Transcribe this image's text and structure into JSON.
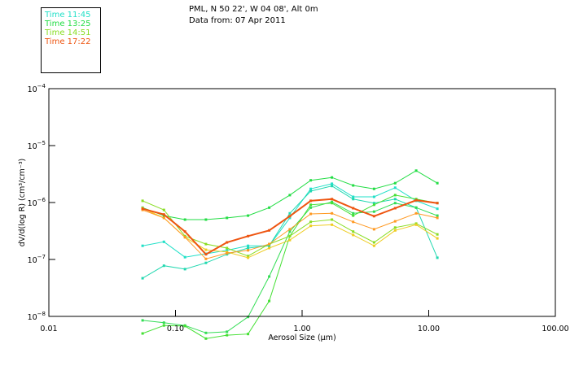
{
  "header": {
    "location": "PML, N 50 22', W 04 08', Alt 0m",
    "date": "Data from: 07 Apr 2011"
  },
  "legend": [
    {
      "label": "Time 11:45",
      "color": "#22e0c8"
    },
    {
      "label": "Time 13:25",
      "color": "#22dd44"
    },
    {
      "label": "Time 14:51",
      "color": "#88dd22"
    },
    {
      "label": "Time 17:22",
      "color": "#ee5511"
    }
  ],
  "chart_data": {
    "type": "line",
    "title": "",
    "xlabel": "Aerosol Size (μm)",
    "ylabel": "dV/d(log R) (cm³/cm⁻³)",
    "xscale": "log",
    "yscale": "log",
    "xlim": [
      0.01,
      100.0
    ],
    "ylim": [
      1e-08,
      0.0001
    ],
    "x_ticks": [
      {
        "value": 0.01,
        "label": "0.01"
      },
      {
        "value": 0.1,
        "label": "0.10"
      },
      {
        "value": 1.0,
        "label": "1.00"
      },
      {
        "value": 10.0,
        "label": "10.00"
      },
      {
        "value": 100.0,
        "label": "100.00"
      }
    ],
    "y_ticks": [
      {
        "exp": -4,
        "base": "10",
        "sup": "−4"
      },
      {
        "exp": -5,
        "base": "10",
        "sup": "−5"
      },
      {
        "exp": -6,
        "base": "10",
        "sup": "−6"
      },
      {
        "exp": -7,
        "base": "10",
        "sup": "−7"
      },
      {
        "exp": -8,
        "base": "10",
        "sup": "−8"
      }
    ],
    "x": [
      0.055,
      0.081,
      0.119,
      0.174,
      0.255,
      0.374,
      0.55,
      0.8,
      1.17,
      1.72,
      2.53,
      3.7,
      5.43,
      7.96,
      11.7
    ],
    "series": [
      {
        "name": "Time 11:45",
        "color": "#22e0c8",
        "log10_values": [
          -6.76,
          -6.69,
          -6.96,
          -6.9,
          -6.84,
          -6.76,
          -6.76,
          -6.27,
          -5.76,
          -5.67,
          -5.9,
          -5.9,
          -5.74,
          -5.97,
          -6.11
        ]
      },
      {
        "name": "",
        "color": "#22d8b0",
        "log10_values": [
          -7.33,
          -7.11,
          -7.17,
          -7.06,
          -6.91,
          -6.8,
          -6.76,
          -6.19,
          -5.8,
          -5.71,
          -5.94,
          -6.01,
          -5.94,
          -6.09,
          -6.97
        ]
      },
      {
        "name": "Time 13:25",
        "color": "#22dd44",
        "log10_values": [
          -6.09,
          -6.23,
          -6.3,
          -6.3,
          -6.27,
          -6.23,
          -6.09,
          -5.87,
          -5.61,
          -5.56,
          -5.7,
          -5.76,
          -5.66,
          -5.44,
          -5.66
        ]
      },
      {
        "name": "",
        "color": "#33dd55",
        "log10_values": [
          -8.07,
          -8.11,
          -8.16,
          -8.29,
          -8.27,
          -8.01,
          -7.3,
          -6.51,
          -6.09,
          -5.99,
          -6.19,
          -6.16,
          -6.01,
          -6.09,
          -6.23
        ]
      },
      {
        "name": "",
        "color": "#44e033",
        "log10_values": [
          -8.3,
          -8.16,
          -8.17,
          -8.39,
          -8.33,
          -8.31,
          -7.73,
          -6.59,
          -6.04,
          -6.01,
          -6.23,
          -6.04,
          -5.87,
          -5.94,
          -6.01
        ]
      },
      {
        "name": "Time 14:51",
        "color": "#88dd22",
        "log10_values": [
          -5.97,
          -6.13,
          -6.59,
          -6.73,
          -6.8,
          -6.94,
          -6.73,
          -6.59,
          -6.34,
          -6.3,
          -6.51,
          -6.7,
          -6.44,
          -6.37,
          -6.56
        ]
      },
      {
        "name": "",
        "color": "#eecc22",
        "log10_values": [
          -6.1,
          -6.27,
          -6.61,
          -6.83,
          -6.87,
          -6.97,
          -6.8,
          -6.66,
          -6.41,
          -6.39,
          -6.57,
          -6.76,
          -6.49,
          -6.39,
          -6.63
        ]
      },
      {
        "name": "",
        "color": "#ff9922",
        "log10_values": [
          -6.13,
          -6.27,
          -6.61,
          -6.99,
          -6.89,
          -6.84,
          -6.73,
          -6.47,
          -6.2,
          -6.19,
          -6.34,
          -6.47,
          -6.33,
          -6.19,
          -6.27
        ]
      },
      {
        "name": "Time 17:22",
        "color": "#ee5511",
        "log10_values": [
          -6.11,
          -6.21,
          -6.51,
          -6.91,
          -6.7,
          -6.59,
          -6.49,
          -6.24,
          -5.97,
          -5.94,
          -6.1,
          -6.24,
          -6.1,
          -5.96,
          -6.01
        ]
      }
    ]
  }
}
